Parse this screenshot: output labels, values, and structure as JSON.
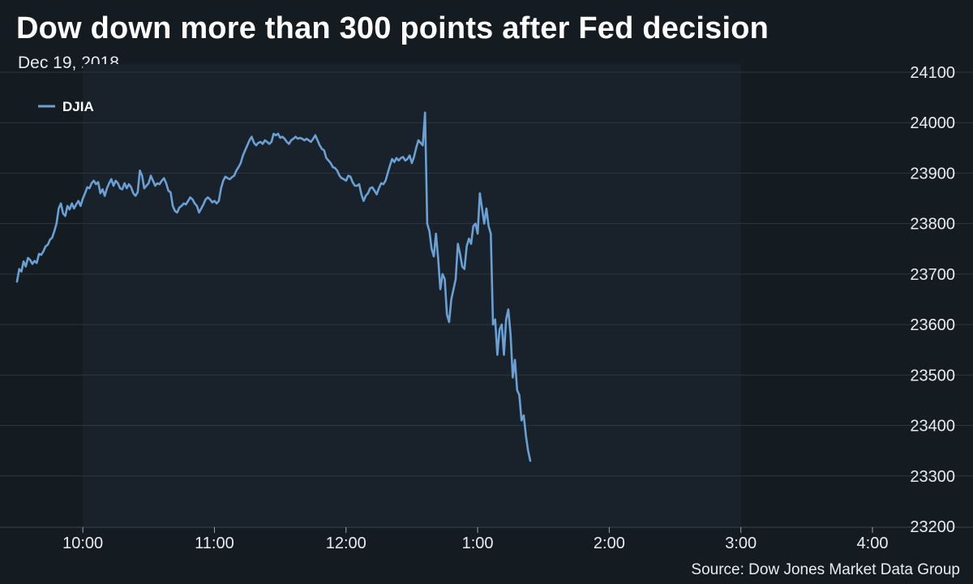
{
  "chart_data": {
    "type": "line",
    "title": "Dow down more than 300 points after Fed decision",
    "subtitle": "Dec 19, 2018",
    "source": "Source: Dow Jones Market Data Group",
    "xlabel": "",
    "ylabel": "",
    "x_unit": "minutes after 9:30",
    "xlim": [
      "9:30",
      "4:00"
    ],
    "ylim": [
      23200,
      24100
    ],
    "x_ticks": [
      {
        "t": 30,
        "label": "10:00"
      },
      {
        "t": 90,
        "label": "11:00"
      },
      {
        "t": 150,
        "label": "12:00"
      },
      {
        "t": 210,
        "label": "1:00"
      },
      {
        "t": 270,
        "label": "2:00"
      },
      {
        "t": 330,
        "label": "3:00"
      },
      {
        "t": 390,
        "label": "4:00"
      }
    ],
    "y_ticks": [
      23200,
      23300,
      23400,
      23500,
      23600,
      23700,
      23800,
      23900,
      24000,
      24100
    ],
    "grid": true,
    "legend_position": "top-left",
    "series": [
      {
        "name": "DJIA",
        "color": "#6aa0d4",
        "points": [
          [
            0,
            23685
          ],
          [
            1,
            23710
          ],
          [
            2,
            23705
          ],
          [
            3,
            23725
          ],
          [
            4,
            23715
          ],
          [
            5,
            23732
          ],
          [
            6,
            23728
          ],
          [
            7,
            23720
          ],
          [
            8,
            23726
          ],
          [
            9,
            23722
          ],
          [
            10,
            23740
          ],
          [
            11,
            23738
          ],
          [
            12,
            23745
          ],
          [
            13,
            23755
          ],
          [
            14,
            23758
          ],
          [
            15,
            23768
          ],
          [
            16,
            23772
          ],
          [
            17,
            23785
          ],
          [
            18,
            23800
          ],
          [
            19,
            23830
          ],
          [
            20,
            23840
          ],
          [
            21,
            23820
          ],
          [
            22,
            23815
          ],
          [
            23,
            23835
          ],
          [
            24,
            23828
          ],
          [
            25,
            23840
          ],
          [
            26,
            23830
          ],
          [
            27,
            23838
          ],
          [
            28,
            23845
          ],
          [
            29,
            23835
          ],
          [
            30,
            23850
          ],
          [
            31,
            23860
          ],
          [
            32,
            23872
          ],
          [
            33,
            23870
          ],
          [
            34,
            23880
          ],
          [
            35,
            23885
          ],
          [
            36,
            23878
          ],
          [
            37,
            23882
          ],
          [
            38,
            23860
          ],
          [
            39,
            23868
          ],
          [
            40,
            23855
          ],
          [
            41,
            23870
          ],
          [
            42,
            23880
          ],
          [
            43,
            23888
          ],
          [
            44,
            23875
          ],
          [
            45,
            23885
          ],
          [
            46,
            23880
          ],
          [
            47,
            23870
          ],
          [
            48,
            23868
          ],
          [
            49,
            23880
          ],
          [
            50,
            23870
          ],
          [
            51,
            23878
          ],
          [
            52,
            23872
          ],
          [
            53,
            23860
          ],
          [
            54,
            23855
          ],
          [
            55,
            23862
          ],
          [
            56,
            23905
          ],
          [
            57,
            23895
          ],
          [
            58,
            23870
          ],
          [
            59,
            23875
          ],
          [
            60,
            23880
          ],
          [
            61,
            23895
          ],
          [
            62,
            23885
          ],
          [
            63,
            23875
          ],
          [
            64,
            23880
          ],
          [
            65,
            23878
          ],
          [
            66,
            23885
          ],
          [
            67,
            23890
          ],
          [
            68,
            23880
          ],
          [
            69,
            23865
          ],
          [
            70,
            23862
          ],
          [
            71,
            23835
          ],
          [
            72,
            23825
          ],
          [
            73,
            23822
          ],
          [
            74,
            23832
          ],
          [
            75,
            23835
          ],
          [
            76,
            23840
          ],
          [
            77,
            23838
          ],
          [
            78,
            23845
          ],
          [
            79,
            23852
          ],
          [
            80,
            23848
          ],
          [
            81,
            23840
          ],
          [
            82,
            23835
          ],
          [
            83,
            23822
          ],
          [
            84,
            23830
          ],
          [
            85,
            23838
          ],
          [
            86,
            23848
          ],
          [
            87,
            23852
          ],
          [
            88,
            23848
          ],
          [
            89,
            23842
          ],
          [
            90,
            23845
          ],
          [
            91,
            23840
          ],
          [
            92,
            23845
          ],
          [
            93,
            23870
          ],
          [
            94,
            23885
          ],
          [
            95,
            23893
          ],
          [
            96,
            23890
          ],
          [
            97,
            23888
          ],
          [
            98,
            23892
          ],
          [
            99,
            23895
          ],
          [
            100,
            23905
          ],
          [
            101,
            23912
          ],
          [
            102,
            23920
          ],
          [
            103,
            23935
          ],
          [
            104,
            23945
          ],
          [
            105,
            23955
          ],
          [
            106,
            23965
          ],
          [
            107,
            23972
          ],
          [
            108,
            23960
          ],
          [
            109,
            23955
          ],
          [
            110,
            23960
          ],
          [
            111,
            23962
          ],
          [
            112,
            23958
          ],
          [
            113,
            23965
          ],
          [
            114,
            23962
          ],
          [
            115,
            23958
          ],
          [
            116,
            23962
          ],
          [
            117,
            23978
          ],
          [
            118,
            23975
          ],
          [
            119,
            23978
          ],
          [
            120,
            23970
          ],
          [
            121,
            23972
          ],
          [
            122,
            23968
          ],
          [
            123,
            23962
          ],
          [
            124,
            23958
          ],
          [
            125,
            23965
          ],
          [
            126,
            23968
          ],
          [
            127,
            23972
          ],
          [
            128,
            23968
          ],
          [
            129,
            23970
          ],
          [
            130,
            23968
          ],
          [
            131,
            23965
          ],
          [
            132,
            23968
          ],
          [
            133,
            23965
          ],
          [
            134,
            23962
          ],
          [
            135,
            23968
          ],
          [
            136,
            23975
          ],
          [
            137,
            23965
          ],
          [
            138,
            23955
          ],
          [
            139,
            23948
          ],
          [
            140,
            23945
          ],
          [
            141,
            23930
          ],
          [
            142,
            23925
          ],
          [
            143,
            23920
          ],
          [
            144,
            23912
          ],
          [
            145,
            23910
          ],
          [
            146,
            23905
          ],
          [
            147,
            23895
          ],
          [
            148,
            23890
          ],
          [
            149,
            23888
          ],
          [
            150,
            23885
          ],
          [
            151,
            23895
          ],
          [
            152,
            23893
          ],
          [
            153,
            23882
          ],
          [
            154,
            23875
          ],
          [
            155,
            23875
          ],
          [
            156,
            23878
          ],
          [
            157,
            23858
          ],
          [
            158,
            23845
          ],
          [
            159,
            23855
          ],
          [
            160,
            23860
          ],
          [
            161,
            23870
          ],
          [
            162,
            23872
          ],
          [
            163,
            23865
          ],
          [
            164,
            23858
          ],
          [
            165,
            23870
          ],
          [
            166,
            23880
          ],
          [
            167,
            23878
          ],
          [
            168,
            23885
          ],
          [
            169,
            23900
          ],
          [
            170,
            23915
          ],
          [
            171,
            23928
          ],
          [
            172,
            23922
          ],
          [
            173,
            23930
          ],
          [
            174,
            23925
          ],
          [
            175,
            23930
          ],
          [
            176,
            23932
          ],
          [
            177,
            23925
          ],
          [
            178,
            23928
          ],
          [
            179,
            23935
          ],
          [
            180,
            23920
          ],
          [
            181,
            23932
          ],
          [
            182,
            23950
          ],
          [
            183,
            23965
          ],
          [
            184,
            23960
          ],
          [
            185,
            23955
          ],
          [
            186,
            24020
          ],
          [
            187,
            23800
          ],
          [
            188,
            23785
          ],
          [
            189,
            23750
          ],
          [
            190,
            23735
          ],
          [
            191,
            23780
          ],
          [
            192,
            23730
          ],
          [
            193,
            23670
          ],
          [
            194,
            23700
          ],
          [
            195,
            23690
          ],
          [
            196,
            23620
          ],
          [
            197,
            23605
          ],
          [
            198,
            23650
          ],
          [
            199,
            23670
          ],
          [
            200,
            23690
          ],
          [
            201,
            23760
          ],
          [
            202,
            23740
          ],
          [
            203,
            23715
          ],
          [
            204,
            23710
          ],
          [
            205,
            23755
          ],
          [
            206,
            23770
          ],
          [
            207,
            23760
          ],
          [
            208,
            23795
          ],
          [
            209,
            23800
          ],
          [
            210,
            23780
          ],
          [
            211,
            23860
          ],
          [
            212,
            23830
          ],
          [
            213,
            23800
          ],
          [
            214,
            23830
          ],
          [
            215,
            23795
          ],
          [
            216,
            23780
          ],
          [
            217,
            23600
          ],
          [
            218,
            23610
          ],
          [
            219,
            23540
          ],
          [
            220,
            23590
          ],
          [
            221,
            23600
          ],
          [
            222,
            23540
          ],
          [
            223,
            23610
          ],
          [
            224,
            23630
          ],
          [
            225,
            23580
          ],
          [
            226,
            23495
          ],
          [
            227,
            23530
          ],
          [
            228,
            23470
          ],
          [
            229,
            23460
          ],
          [
            230,
            23410
          ],
          [
            231,
            23420
          ],
          [
            232,
            23380
          ],
          [
            233,
            23350
          ],
          [
            234,
            23330
          ]
        ]
      }
    ]
  }
}
